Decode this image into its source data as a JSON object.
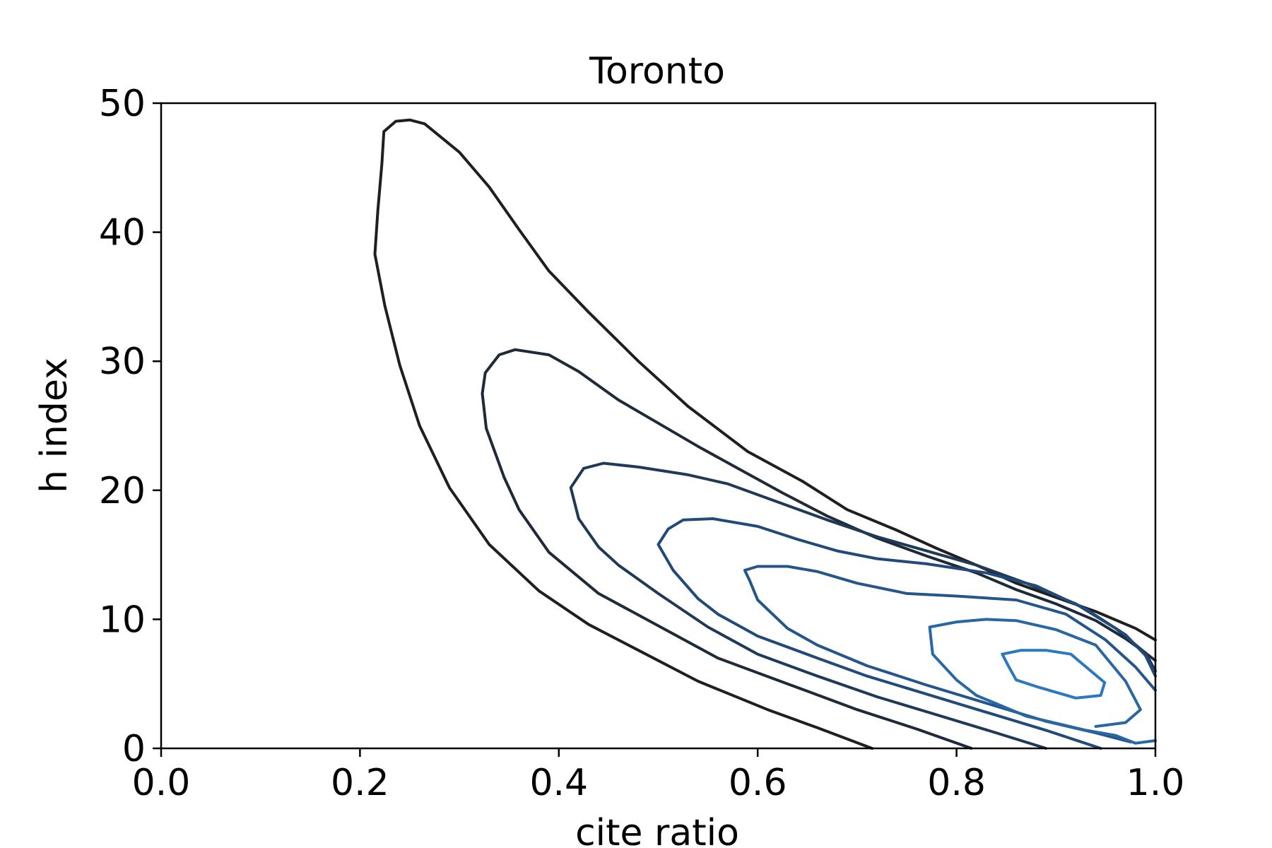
{
  "chart_data": {
    "type": "contour",
    "title": "Toronto",
    "xlabel": "cite ratio",
    "ylabel": "h index",
    "xlim": [
      0.0,
      1.0
    ],
    "ylim": [
      0,
      50
    ],
    "x_ticks": [
      "0.0",
      "0.2",
      "0.4",
      "0.6",
      "0.8",
      "1.0"
    ],
    "y_ticks": [
      "0",
      "10",
      "20",
      "30",
      "40",
      "50"
    ],
    "grid": false,
    "legend": false,
    "series": [
      {
        "color": "#1f1f1f",
        "points": [
          [
            0.715,
            0
          ],
          [
            0.66,
            1.6
          ],
          [
            0.61,
            3.0
          ],
          [
            0.54,
            5.2
          ],
          [
            0.48,
            7.6
          ],
          [
            0.43,
            9.6
          ],
          [
            0.38,
            12.2
          ],
          [
            0.33,
            15.8
          ],
          [
            0.29,
            20.2
          ],
          [
            0.26,
            25.0
          ],
          [
            0.24,
            29.7
          ],
          [
            0.225,
            34.3
          ],
          [
            0.215,
            38.3
          ],
          [
            0.218,
            41.7
          ],
          [
            0.222,
            45.3
          ],
          [
            0.224,
            47.8
          ],
          [
            0.236,
            48.6
          ],
          [
            0.25,
            48.7
          ],
          [
            0.265,
            48.4
          ],
          [
            0.3,
            46.2
          ],
          [
            0.33,
            43.5
          ],
          [
            0.36,
            40.2
          ],
          [
            0.39,
            37.0
          ],
          [
            0.43,
            33.8
          ],
          [
            0.48,
            30.0
          ],
          [
            0.53,
            26.5
          ],
          [
            0.59,
            23.0
          ],
          [
            0.645,
            20.7
          ],
          [
            0.69,
            18.5
          ],
          [
            0.74,
            16.9
          ],
          [
            0.78,
            15.5
          ],
          [
            0.82,
            14.2
          ],
          [
            0.86,
            12.8
          ],
          [
            0.9,
            11.7
          ],
          [
            0.94,
            10.6
          ],
          [
            0.98,
            9.3
          ],
          [
            1.0,
            8.4
          ]
        ]
      },
      {
        "color": "#1e2a38",
        "points": [
          [
            0.815,
            0
          ],
          [
            0.76,
            1.5
          ],
          [
            0.7,
            3.0
          ],
          [
            0.63,
            5.0
          ],
          [
            0.56,
            7.0
          ],
          [
            0.5,
            9.5
          ],
          [
            0.44,
            12.0
          ],
          [
            0.39,
            15.2
          ],
          [
            0.36,
            18.5
          ],
          [
            0.345,
            21.0
          ],
          [
            0.327,
            24.8
          ],
          [
            0.323,
            27.5
          ],
          [
            0.326,
            29.1
          ],
          [
            0.34,
            30.5
          ],
          [
            0.356,
            30.9
          ],
          [
            0.39,
            30.5
          ],
          [
            0.42,
            29.2
          ],
          [
            0.46,
            27.0
          ],
          [
            0.5,
            25.2
          ],
          [
            0.54,
            23.4
          ],
          [
            0.58,
            21.7
          ],
          [
            0.625,
            19.8
          ],
          [
            0.67,
            18.0
          ],
          [
            0.72,
            16.3
          ],
          [
            0.77,
            14.9
          ],
          [
            0.82,
            13.6
          ],
          [
            0.86,
            12.3
          ],
          [
            0.9,
            11.2
          ],
          [
            0.94,
            9.9
          ],
          [
            0.97,
            8.5
          ],
          [
            0.99,
            7.4
          ],
          [
            1.0,
            6.8
          ]
        ]
      },
      {
        "color": "#1f3a56",
        "points": [
          [
            0.89,
            0
          ],
          [
            0.84,
            1.2
          ],
          [
            0.78,
            2.6
          ],
          [
            0.72,
            4.0
          ],
          [
            0.66,
            5.6
          ],
          [
            0.6,
            7.3
          ],
          [
            0.55,
            9.4
          ],
          [
            0.5,
            12.0
          ],
          [
            0.46,
            14.2
          ],
          [
            0.44,
            15.6
          ],
          [
            0.42,
            17.8
          ],
          [
            0.412,
            20.2
          ],
          [
            0.425,
            21.7
          ],
          [
            0.445,
            22.1
          ],
          [
            0.48,
            21.8
          ],
          [
            0.53,
            21.2
          ],
          [
            0.57,
            20.5
          ],
          [
            0.62,
            19.1
          ],
          [
            0.67,
            17.7
          ],
          [
            0.72,
            16.4
          ],
          [
            0.77,
            15.3
          ],
          [
            0.82,
            14.2
          ],
          [
            0.87,
            12.8
          ],
          [
            0.92,
            11.2
          ],
          [
            0.96,
            9.3
          ],
          [
            0.99,
            7.4
          ],
          [
            1.0,
            6.0
          ]
        ]
      },
      {
        "color": "#21497a",
        "points": [
          [
            0.945,
            0
          ],
          [
            0.89,
            1.4
          ],
          [
            0.83,
            2.8
          ],
          [
            0.77,
            4.2
          ],
          [
            0.71,
            5.6
          ],
          [
            0.66,
            7.0
          ],
          [
            0.6,
            8.7
          ],
          [
            0.56,
            10.4
          ],
          [
            0.54,
            11.6
          ],
          [
            0.515,
            13.8
          ],
          [
            0.5,
            15.8
          ],
          [
            0.51,
            17.0
          ],
          [
            0.525,
            17.7
          ],
          [
            0.555,
            17.8
          ],
          [
            0.6,
            17.2
          ],
          [
            0.64,
            16.2
          ],
          [
            0.68,
            15.3
          ],
          [
            0.72,
            14.7
          ],
          [
            0.77,
            14.3
          ],
          [
            0.83,
            13.6
          ],
          [
            0.88,
            12.6
          ],
          [
            0.93,
            10.8
          ],
          [
            0.97,
            8.8
          ],
          [
            0.99,
            7.2
          ],
          [
            1.0,
            5.6
          ]
        ]
      },
      {
        "color": "#24568c",
        "points": [
          [
            0.975,
            0.5
          ],
          [
            0.94,
            1.2
          ],
          [
            0.89,
            2.1
          ],
          [
            0.83,
            3.5
          ],
          [
            0.77,
            4.9
          ],
          [
            0.71,
            6.4
          ],
          [
            0.66,
            8.0
          ],
          [
            0.63,
            9.3
          ],
          [
            0.6,
            11.5
          ],
          [
            0.592,
            13.0
          ],
          [
            0.587,
            13.8
          ],
          [
            0.6,
            14.1
          ],
          [
            0.63,
            14.1
          ],
          [
            0.66,
            13.7
          ],
          [
            0.7,
            12.8
          ],
          [
            0.75,
            12.0
          ],
          [
            0.8,
            11.8
          ],
          [
            0.86,
            11.5
          ],
          [
            0.91,
            10.4
          ],
          [
            0.95,
            8.4
          ],
          [
            0.98,
            6.3
          ],
          [
            1.0,
            4.5
          ]
        ]
      },
      {
        "color": "#2866a4",
        "points": [
          [
            1.0,
            0.6
          ],
          [
            0.98,
            0.4
          ],
          [
            0.96,
            1.0
          ],
          [
            0.93,
            1.4
          ],
          [
            0.87,
            2.5
          ],
          [
            0.82,
            4.1
          ],
          [
            0.8,
            5.3
          ],
          [
            0.776,
            7.3
          ],
          [
            0.773,
            9.4
          ],
          [
            0.8,
            9.8
          ],
          [
            0.83,
            10.0
          ],
          [
            0.86,
            9.9
          ],
          [
            0.9,
            9.2
          ],
          [
            0.94,
            8.0
          ],
          [
            0.97,
            5.2
          ],
          [
            0.985,
            3.0
          ],
          [
            0.97,
            2.0
          ],
          [
            0.94,
            1.7
          ]
        ]
      },
      {
        "color": "#2b77c0",
        "points": [
          [
            0.846,
            7.3
          ],
          [
            0.865,
            7.6
          ],
          [
            0.89,
            7.6
          ],
          [
            0.915,
            7.3
          ],
          [
            0.935,
            6.0
          ],
          [
            0.949,
            5.1
          ],
          [
            0.945,
            4.1
          ],
          [
            0.92,
            3.9
          ],
          [
            0.88,
            4.8
          ],
          [
            0.86,
            5.3
          ],
          [
            0.852,
            6.4
          ],
          [
            0.846,
            7.3
          ]
        ]
      }
    ]
  }
}
